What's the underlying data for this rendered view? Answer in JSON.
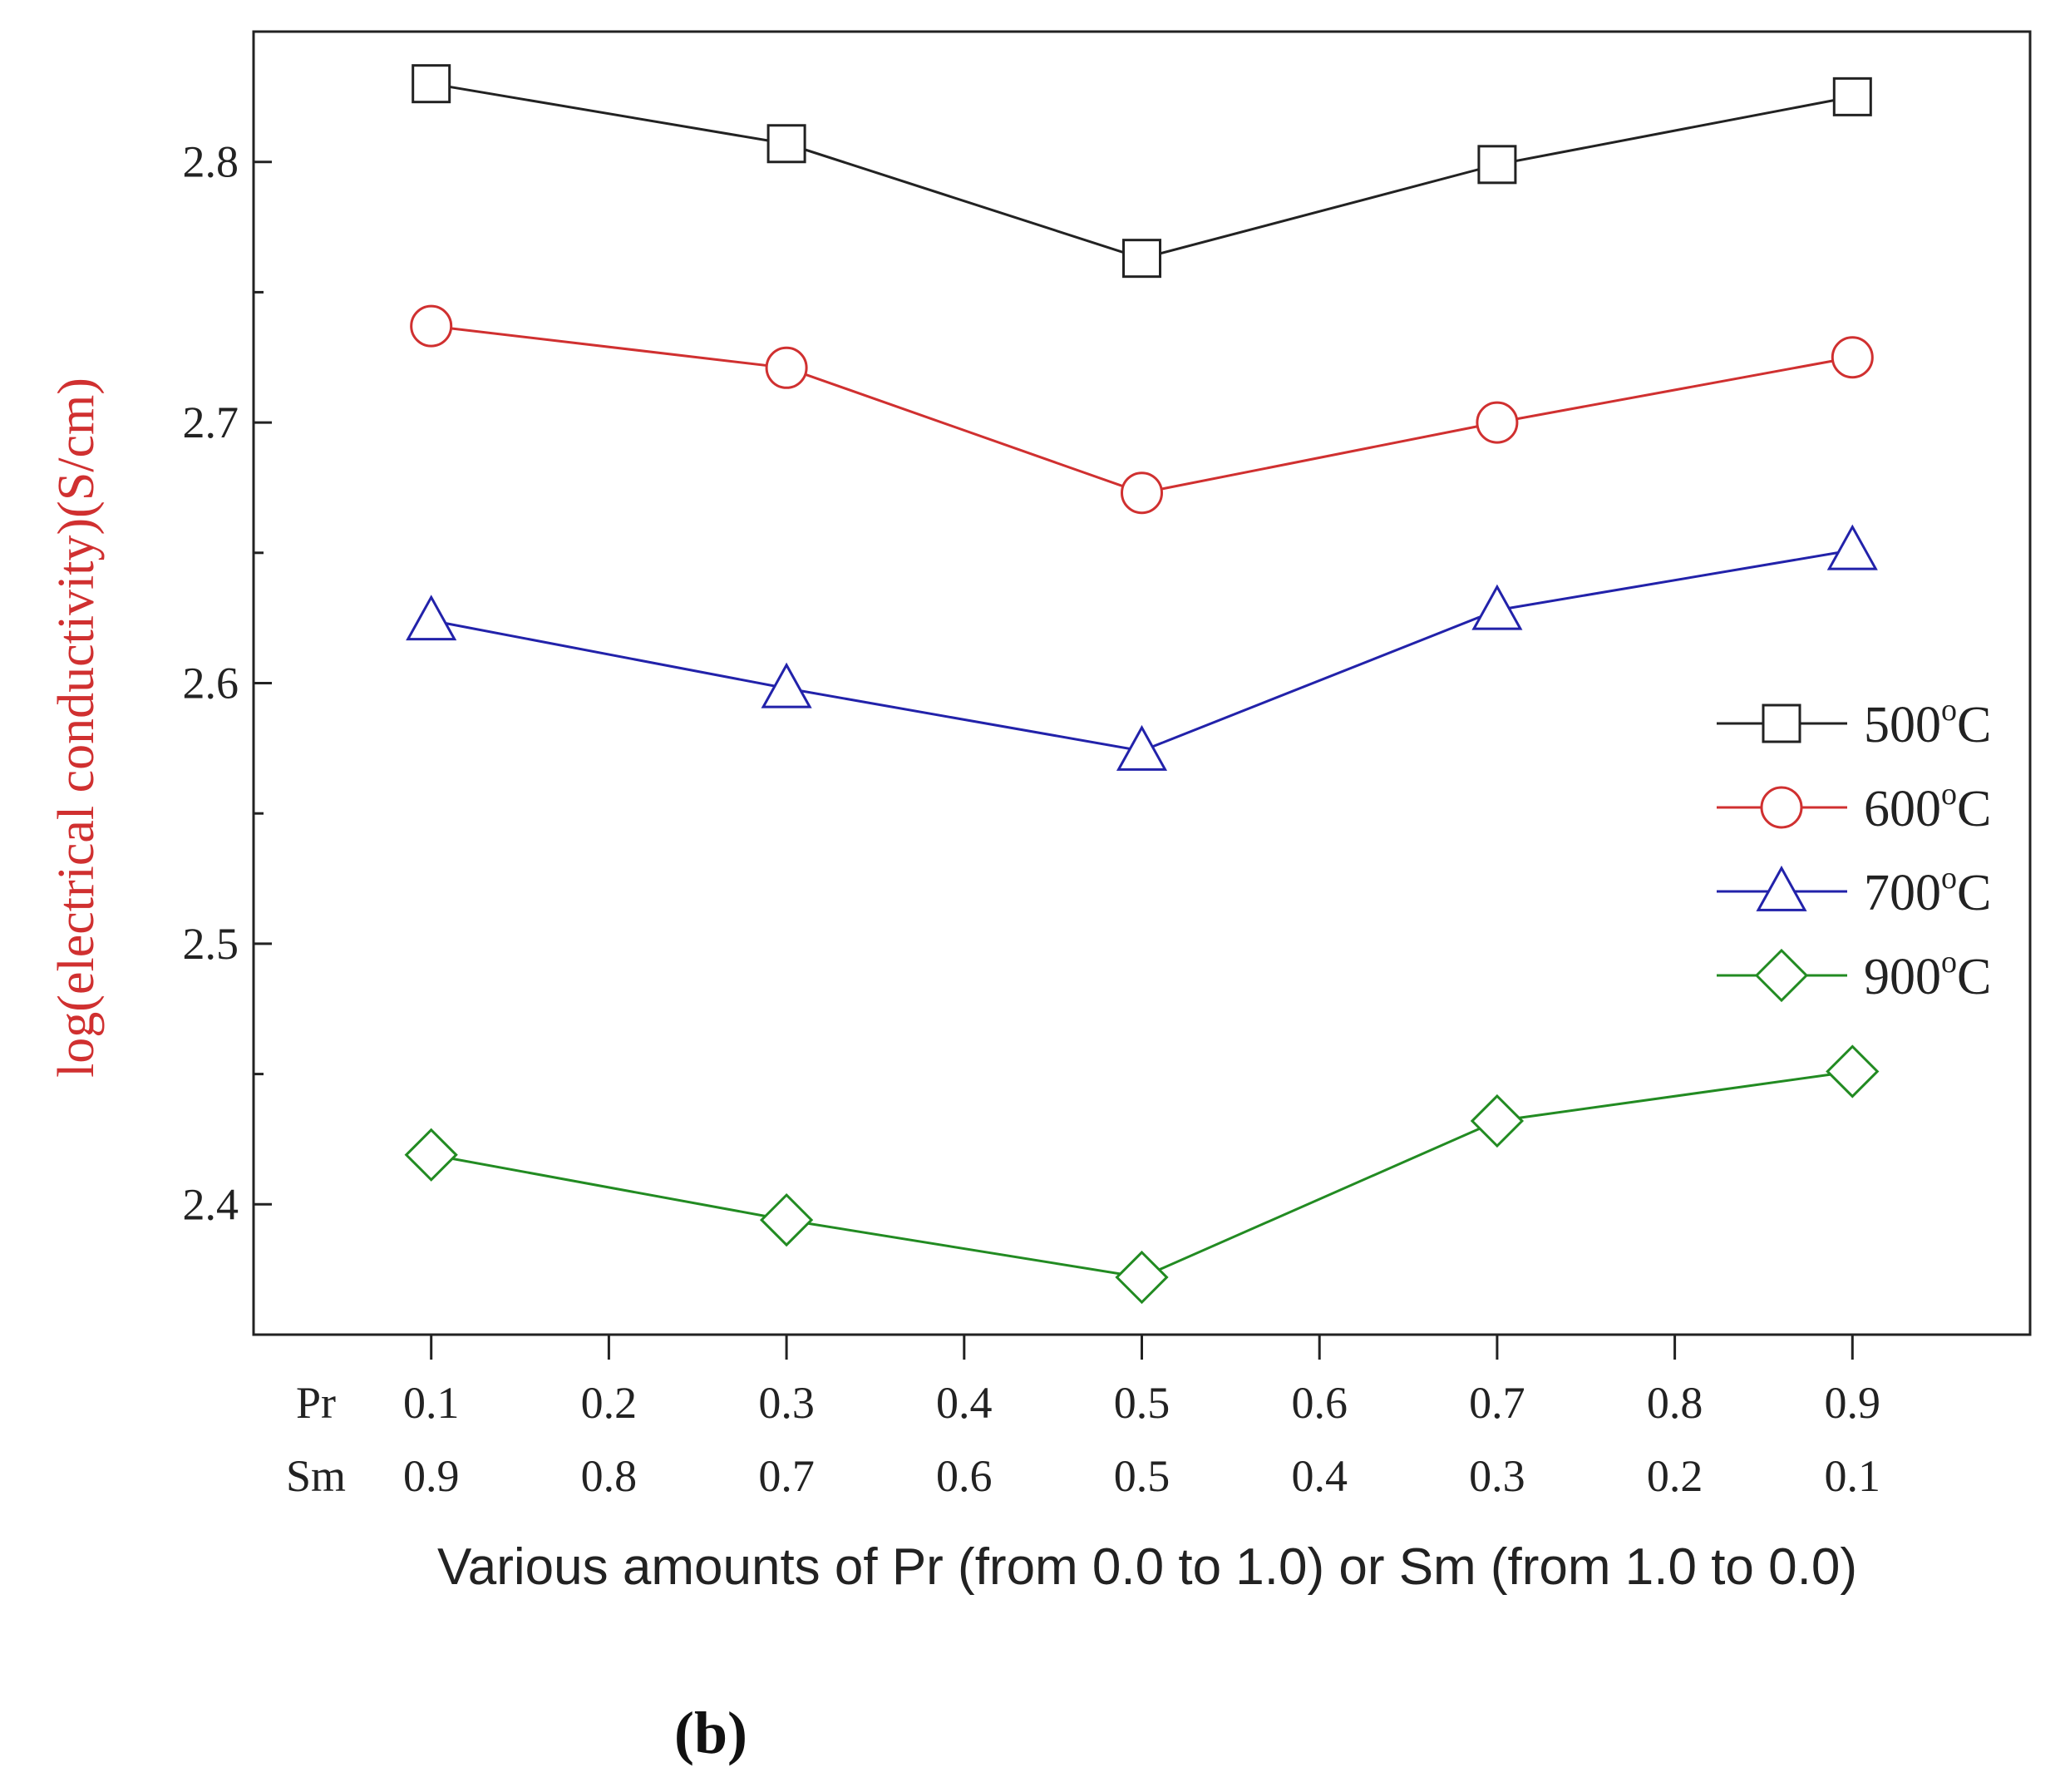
{
  "chart_data": {
    "type": "line",
    "title": "",
    "panel_label": "(b)",
    "ylabel": "log(electrical conductivity)(S/cm)",
    "ylabel_color": "#d03030",
    "xlabel": "Various amounts of Pr (from 0.0 to 1.0) or Sm (from 1.0 to 0.0)",
    "x_row_labels": [
      "Pr",
      "Sm"
    ],
    "x_ticks": [
      0.1,
      0.2,
      0.3,
      0.4,
      0.5,
      0.6,
      0.7,
      0.8,
      0.9
    ],
    "x_tick_labels_pr": [
      "0.1",
      "0.2",
      "0.3",
      "0.4",
      "0.5",
      "0.6",
      "0.7",
      "0.8",
      "0.9"
    ],
    "x_tick_labels_sm": [
      "0.9",
      "0.8",
      "0.7",
      "0.6",
      "0.5",
      "0.4",
      "0.3",
      "0.2",
      "0.1"
    ],
    "xlim": [
      0.0,
      1.0
    ],
    "ylim": [
      2.35,
      2.85
    ],
    "y_ticks": [
      2.4,
      2.5,
      2.6,
      2.7,
      2.8
    ],
    "y_tick_labels": [
      "2.4",
      "2.5",
      "2.6",
      "2.7",
      "2.8"
    ],
    "x": [
      0.1,
      0.3,
      0.5,
      0.7,
      0.9
    ],
    "legend_position": "right",
    "series": [
      {
        "name": "500",
        "unit": "°C",
        "sup": "o",
        "unit_after": "C",
        "color": "#222222",
        "marker": "square",
        "values": [
          2.83,
          2.807,
          2.763,
          2.799,
          2.825
        ]
      },
      {
        "name": "600",
        "unit": "°C",
        "sup": "o",
        "unit_after": "C",
        "color": "#d03030",
        "marker": "circle",
        "values": [
          2.737,
          2.721,
          2.673,
          2.7,
          2.725
        ]
      },
      {
        "name": "700",
        "unit": "°C",
        "sup": "o",
        "unit_after": "C",
        "color": "#2222aa",
        "marker": "triangle",
        "values": [
          2.624,
          2.598,
          2.574,
          2.628,
          2.651
        ]
      },
      {
        "name": "900",
        "unit": "°C",
        "sup": "o",
        "unit_after": "C",
        "color": "#228b22",
        "marker": "diamond",
        "values": [
          2.419,
          2.394,
          2.372,
          2.432,
          2.451
        ]
      }
    ]
  }
}
